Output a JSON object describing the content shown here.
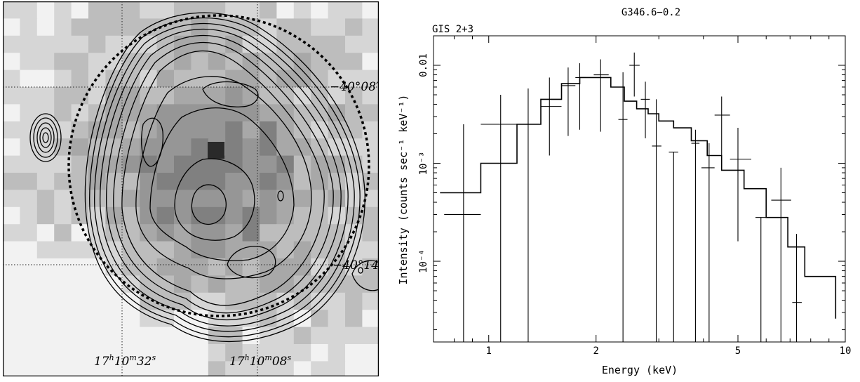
{
  "left_image": {
    "dec_labels": [
      "−40°08′",
      "−40°14′"
    ],
    "ra_labels": [
      {
        "h": "17",
        "m": "10",
        "s": "32"
      },
      {
        "h": "17",
        "m": "10",
        "s": "08"
      }
    ]
  },
  "chart_data": {
    "type": "step",
    "title": "G346.6−0.2",
    "subtitle": "GIS 2+3",
    "xlabel": "Energy (keV)",
    "ylabel": "Intensity (counts sec⁻¹ keV⁻¹)",
    "x_scale": "log",
    "y_scale": "log",
    "xlim": [
      0.7,
      10
    ],
    "ylim": [
      1.5e-05,
      0.02
    ],
    "x_ticks": [
      1,
      2,
      5,
      10
    ],
    "x_tick_labels": [
      "1",
      "2",
      "5",
      "10"
    ],
    "y_ticks": [
      0.0001,
      0.001,
      0.01
    ],
    "y_tick_labels": [
      "10⁻⁴",
      "10⁻³",
      "0.01"
    ],
    "model": {
      "name": "model",
      "edges": [
        0.73,
        0.95,
        1.2,
        1.4,
        1.6,
        1.8,
        2.0,
        2.2,
        2.4,
        2.6,
        2.8,
        3.0,
        3.3,
        3.7,
        4.1,
        4.5,
        5.2,
        6.0,
        6.9,
        7.7,
        9.4
      ],
      "values": [
        0.0005,
        0.001,
        0.0025,
        0.0045,
        0.0065,
        0.0075,
        0.0075,
        0.006,
        0.0043,
        0.0036,
        0.0032,
        0.0027,
        0.0023,
        0.0017,
        0.0012,
        0.00085,
        0.00055,
        0.00028,
        0.00014,
        7e-05,
        2.6e-05
      ]
    },
    "points": [
      {
        "x": 0.85,
        "xlo": 0.75,
        "xhi": 0.95,
        "y": 0.0003,
        "ylo": 1.5e-05,
        "yhi": 0.0025
      },
      {
        "x": 1.08,
        "xlo": 0.95,
        "xhi": 1.2,
        "y": 0.0025,
        "ylo": 1.5e-05,
        "yhi": 0.005
      },
      {
        "x": 1.29,
        "xlo": 1.2,
        "xhi": 1.4,
        "y": 0.0025,
        "ylo": 1.5e-05,
        "yhi": 0.0058
      },
      {
        "x": 1.48,
        "xlo": 1.4,
        "xhi": 1.6,
        "y": 0.0038,
        "ylo": 0.0012,
        "yhi": 0.0075
      },
      {
        "x": 1.67,
        "xlo": 1.6,
        "xhi": 1.75,
        "y": 0.0062,
        "ylo": 0.0019,
        "yhi": 0.0095
      },
      {
        "x": 1.8,
        "xlo": 1.75,
        "xhi": 1.87,
        "y": 0.0075,
        "ylo": 0.0022,
        "yhi": 0.0105
      },
      {
        "x": 2.06,
        "xlo": 1.97,
        "xhi": 2.17,
        "y": 0.008,
        "ylo": 0.0021,
        "yhi": 0.0115
      },
      {
        "x": 2.38,
        "xlo": 2.31,
        "xhi": 2.45,
        "y": 0.0028,
        "ylo": 1.5e-05,
        "yhi": 0.0085
      },
      {
        "x": 2.56,
        "xlo": 2.48,
        "xhi": 2.65,
        "y": 0.01,
        "ylo": 0.0048,
        "yhi": 0.0135
      },
      {
        "x": 2.75,
        "xlo": 2.67,
        "xhi": 2.83,
        "y": 0.0045,
        "ylo": 0.0018,
        "yhi": 0.0068
      },
      {
        "x": 2.95,
        "xlo": 2.87,
        "xhi": 3.05,
        "y": 0.0015,
        "ylo": 1.5e-05,
        "yhi": 0.0045
      },
      {
        "x": 3.3,
        "xlo": 3.2,
        "xhi": 3.4,
        "y": 0.0013,
        "ylo": 1.5e-05,
        "yhi": 0.0013
      },
      {
        "x": 3.8,
        "xlo": 3.7,
        "xhi": 3.9,
        "y": 0.0016,
        "ylo": 1.5e-05,
        "yhi": 0.0022
      },
      {
        "x": 4.15,
        "xlo": 3.95,
        "xhi": 4.3,
        "y": 0.0009,
        "ylo": 1.5e-05,
        "yhi": 0.0016
      },
      {
        "x": 4.5,
        "xlo": 4.3,
        "xhi": 4.75,
        "y": 0.0031,
        "ylo": 0.0011,
        "yhi": 0.0048
      },
      {
        "x": 5.0,
        "xlo": 4.75,
        "xhi": 5.45,
        "y": 0.0011,
        "ylo": 0.00016,
        "yhi": 0.0023
      },
      {
        "x": 5.8,
        "xlo": 5.6,
        "xhi": 6.0,
        "y": 0.00028,
        "ylo": 1.5e-05,
        "yhi": 0.00028
      },
      {
        "x": 6.6,
        "xlo": 6.2,
        "xhi": 7.05,
        "y": 0.00042,
        "ylo": 1.5e-05,
        "yhi": 0.0009
      },
      {
        "x": 7.3,
        "xlo": 7.1,
        "xhi": 7.55,
        "y": 3.8e-05,
        "ylo": 1.5e-05,
        "yhi": 0.00019
      }
    ]
  }
}
